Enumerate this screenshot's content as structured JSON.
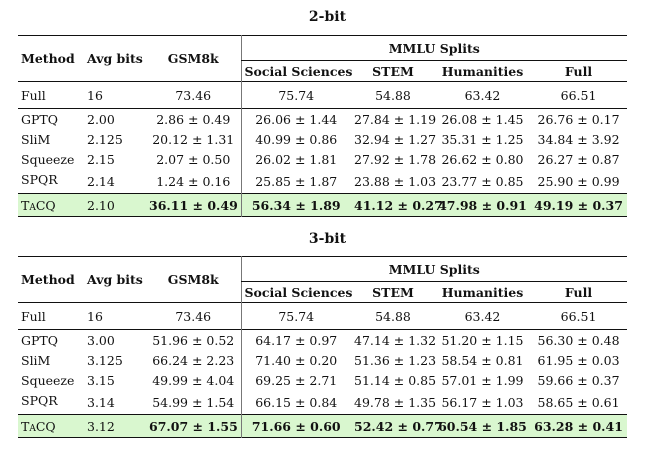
{
  "tables": [
    {
      "title": "2-bit",
      "headers": {
        "method": "Method",
        "avg_bits": "Avg bits",
        "gsm8k": "GSM8k",
        "mmlu_group": "MMLU Splits",
        "social": "Social Sciences",
        "stem": "STEM",
        "humanities": "Humanities",
        "full": "Full"
      },
      "full_row": {
        "method": "Full",
        "bits": "16",
        "gsm8k": "73.46",
        "social": "75.74",
        "stem": "54.88",
        "humanities": "63.42",
        "full": "66.51"
      },
      "rows": [
        {
          "method": "GPTQ",
          "bits": "2.00",
          "gsm8k": "2.86 ± 0.49",
          "social": "26.06 ± 1.44",
          "stem": "27.84 ± 1.19",
          "humanities": "26.08 ± 1.45",
          "full": "26.76 ± 0.17"
        },
        {
          "method": "SliM",
          "bits": "2.125",
          "gsm8k": "20.12 ± 1.31",
          "social": "40.99 ± 0.86",
          "stem": "32.94 ± 1.27",
          "humanities": "35.31 ± 1.25",
          "full": "34.84 ± 3.92"
        },
        {
          "method": "Squeeze",
          "bits": "2.15",
          "gsm8k": "2.07 ± 0.50",
          "social": "26.02 ± 1.81",
          "stem": "27.92 ± 1.78",
          "humanities": "26.62 ± 0.80",
          "full": "26.27 ± 0.87"
        },
        {
          "method": "SPQR",
          "bits": "2.14",
          "gsm8k": "1.24 ± 0.16",
          "social": "25.85 ± 1.87",
          "stem": "23.88 ± 1.03",
          "humanities": "23.77 ± 0.85",
          "full": "25.90 ± 0.99"
        }
      ],
      "ours_row": {
        "method": "TaCQ",
        "bits": "2.10",
        "gsm8k": "36.11 ± 0.49",
        "social": "56.34 ± 1.89",
        "stem": "41.12 ± 0.27",
        "humanities": "47.98 ± 0.91",
        "full": "49.19 ± 0.37"
      }
    },
    {
      "title": "3-bit",
      "headers": {
        "method": "Method",
        "avg_bits": "Avg bits",
        "gsm8k": "GSM8k",
        "mmlu_group": "MMLU Splits",
        "social": "Social Sciences",
        "stem": "STEM",
        "humanities": "Humanities",
        "full": "Full"
      },
      "full_row": {
        "method": "Full",
        "bits": "16",
        "gsm8k": "73.46",
        "social": "75.74",
        "stem": "54.88",
        "humanities": "63.42",
        "full": "66.51"
      },
      "rows": [
        {
          "method": "GPTQ",
          "bits": "3.00",
          "gsm8k": "51.96 ± 0.52",
          "social": "64.17 ± 0.97",
          "stem": "47.14 ± 1.32",
          "humanities": "51.20 ± 1.15",
          "full": "56.30 ± 0.48"
        },
        {
          "method": "SliM",
          "bits": "3.125",
          "gsm8k": "66.24 ± 2.23",
          "social": "71.40 ± 0.20",
          "stem": "51.36 ± 1.23",
          "humanities": "58.54 ± 0.81",
          "full": "61.95 ± 0.03"
        },
        {
          "method": "Squeeze",
          "bits": "3.15",
          "gsm8k": "49.99 ± 4.04",
          "social": "69.25 ± 2.71",
          "stem": "51.14 ± 0.85",
          "humanities": "57.01 ± 1.99",
          "full": "59.66 ± 0.37"
        },
        {
          "method": "SPQR",
          "bits": "3.14",
          "gsm8k": "54.99 ± 1.54",
          "social": "66.15 ± 0.84",
          "stem": "49.78 ± 1.35",
          "humanities": "56.17 ± 1.03",
          "full": "58.65 ± 0.61"
        }
      ],
      "ours_row": {
        "method": "TaCQ",
        "bits": "3.12",
        "gsm8k": "67.07 ± 1.55",
        "social": "71.66 ± 0.60",
        "stem": "52.42 ± 0.77",
        "humanities": "60.54 ± 1.85",
        "full": "63.28 ± 0.41"
      }
    }
  ]
}
